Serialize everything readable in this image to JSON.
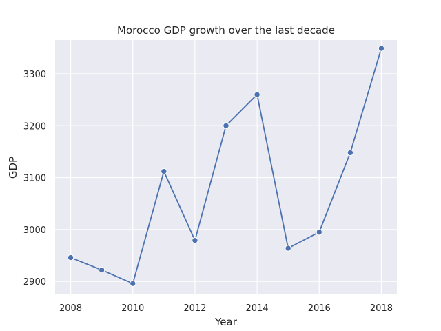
{
  "chart_data": {
    "type": "line",
    "title": "Morocco GDP growth over the last decade",
    "xlabel": "Year",
    "ylabel": "GDP",
    "x": [
      2008,
      2009,
      2010,
      2011,
      2012,
      2013,
      2014,
      2015,
      2016,
      2017,
      2018
    ],
    "series": [
      {
        "values": [
          2946,
          2922,
          2896,
          3112,
          2979,
          3200,
          3260,
          2964,
          2995,
          3148,
          3349
        ]
      }
    ],
    "xlim": [
      2007.5,
      2018.5
    ],
    "ylim": [
      2875,
      3365
    ],
    "xticks": [
      2008,
      2010,
      2012,
      2014,
      2016,
      2018
    ],
    "yticks": [
      2900,
      3000,
      3100,
      3200,
      3300
    ],
    "grid": true,
    "colors": {
      "line": "#4c72b0",
      "background": "#eaeaf2",
      "grid": "#ffffff"
    }
  }
}
